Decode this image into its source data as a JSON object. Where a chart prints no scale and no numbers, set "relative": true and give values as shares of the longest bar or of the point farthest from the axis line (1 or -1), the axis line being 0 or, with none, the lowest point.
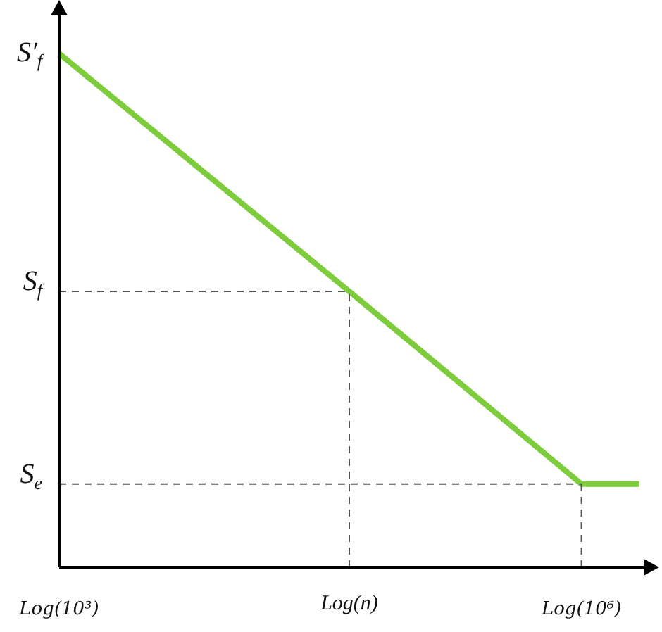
{
  "chart_data": {
    "type": "line",
    "relative": true,
    "categories": [
      "Log(10³)",
      null,
      null,
      null,
      null,
      "Log(n)",
      null,
      null,
      null,
      "Log(10⁶)",
      null
    ],
    "series": [
      {
        "color": "#7ccc3c",
        "values": [
          1,
          null,
          null,
          null,
          null,
          0.537,
          null,
          null,
          null,
          0.162,
          0.162
        ]
      }
    ],
    "ref_lines": [
      {
        "axis": "y",
        "value": 0.537,
        "label": "S$_{f}$",
        "line_style": "dashed"
      },
      {
        "axis": "y",
        "value": 0.162,
        "label": "S$_{e}$",
        "line_style": "dashed"
      },
      {
        "axis": "x",
        "value": "Log(n)",
        "line_style": "dashed"
      },
      {
        "axis": "x",
        "value": "Log(10⁶)",
        "line_style": "dashed"
      }
    ],
    "annotations": [
      {
        "text": "S′$_{f}$",
        "x": "Log(10³)",
        "y": 1
      }
    ],
    "legend": false,
    "marker": "none",
    "line_style": "solid"
  }
}
